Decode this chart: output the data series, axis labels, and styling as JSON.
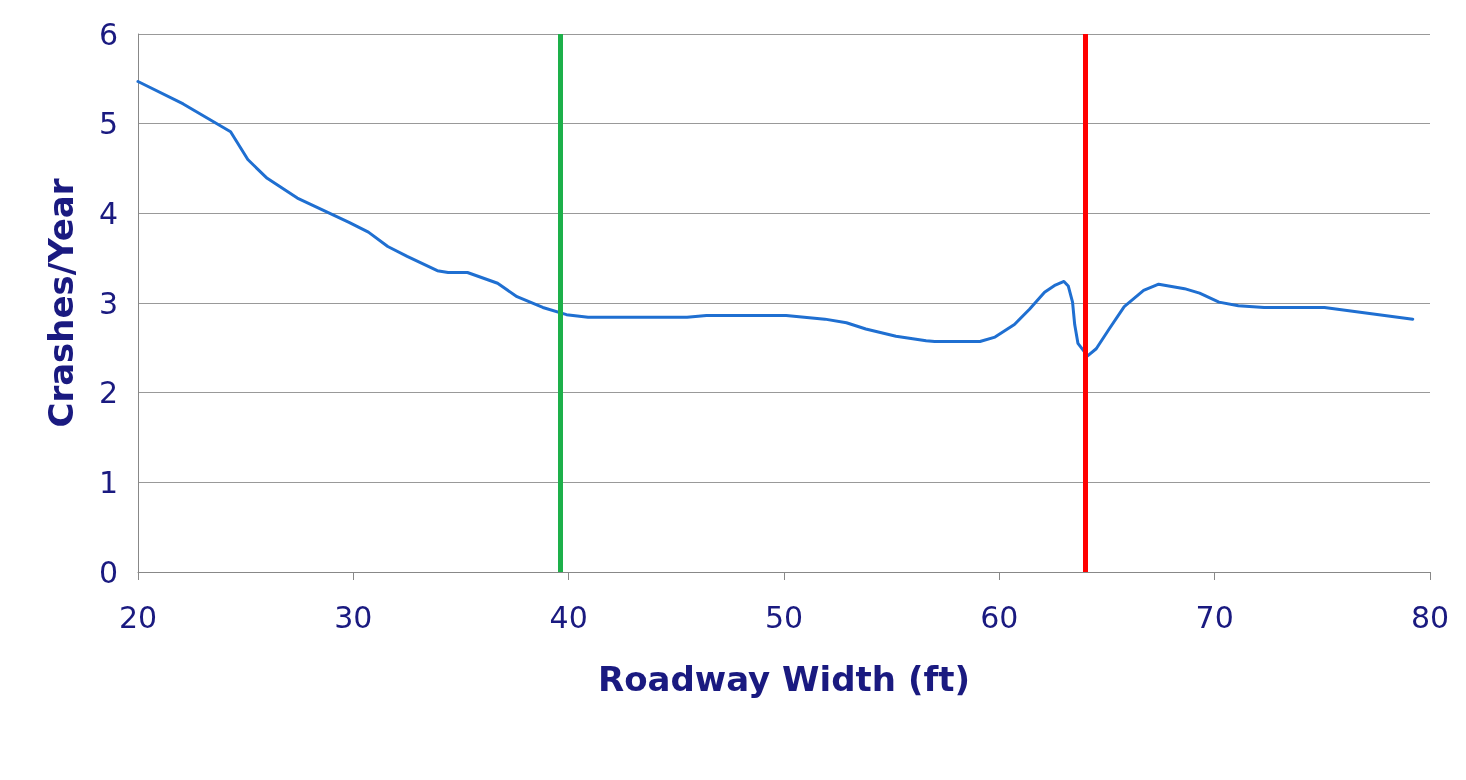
{
  "chart_data": {
    "type": "line",
    "xlabel": "Roadway Width (ft)",
    "ylabel": "Crashes/Year",
    "x": [
      20,
      22.1,
      24.3,
      25.1,
      26,
      27.4,
      29.8,
      30.7,
      31.6,
      32.5,
      33.9,
      34.4,
      35.3,
      36.7,
      37.6,
      38.8,
      39.9,
      40.9,
      45.5,
      46.4,
      50.1,
      51.9,
      52.9,
      53.8,
      55.2,
      56.6,
      57,
      59.1,
      59.8,
      60.7,
      61.4,
      62.1,
      62.6,
      63,
      63.2,
      63.4,
      63.5,
      63.65,
      64.1,
      64.5,
      65.1,
      65.8,
      66.7,
      67.4,
      68.6,
      69.3,
      70.2,
      71.1,
      72.3,
      75.1,
      79.2
    ],
    "series": [
      {
        "color": "#1f6fd1",
        "values": [
          5.47,
          5.22,
          4.91,
          4.6,
          4.39,
          4.17,
          3.9,
          3.79,
          3.63,
          3.52,
          3.36,
          3.34,
          3.34,
          3.22,
          3.07,
          2.95,
          2.87,
          2.84,
          2.84,
          2.86,
          2.86,
          2.82,
          2.78,
          2.71,
          2.63,
          2.58,
          2.57,
          2.57,
          2.62,
          2.76,
          2.93,
          3.12,
          3.2,
          3.24,
          3.19,
          3.01,
          2.76,
          2.55,
          2.41,
          2.49,
          2.71,
          2.96,
          3.14,
          3.21,
          3.16,
          3.11,
          3.01,
          2.97,
          2.95,
          2.95,
          2.82
        ]
      }
    ],
    "xlim": [
      20,
      80
    ],
    "xticks": [
      20,
      30,
      40,
      50,
      60,
      70,
      80
    ],
    "ylim": [
      0,
      6
    ],
    "yticks": [
      0,
      1,
      2,
      3,
      4,
      5,
      6
    ],
    "grid": "y",
    "marker": "none",
    "line_style": "solid",
    "ref_lines": [
      {
        "axis": "x",
        "value": 39.6,
        "color": "#1db04a"
      },
      {
        "axis": "x",
        "value": 64,
        "color": "#ff0000"
      }
    ]
  }
}
